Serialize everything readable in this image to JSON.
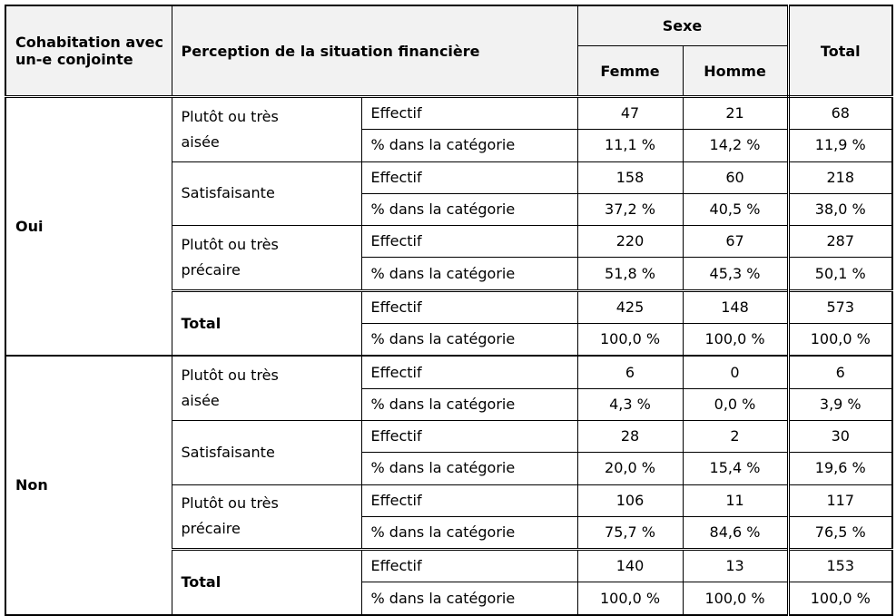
{
  "header": {
    "group": "Cohabitation avec un-e conjointe",
    "perception": "Perception de la situation financière",
    "sexe": "Sexe",
    "femme": "Femme",
    "homme": "Homme",
    "total": "Total"
  },
  "groups": [
    {
      "label": "Oui",
      "categories": [
        {
          "label": "Plutôt ou très aisée",
          "rows": [
            {
              "measure": "Effectif",
              "values": [
                47,
                21,
                68
              ]
            },
            {
              "measure": "% dans la catégorie",
              "values": [
                "11,1 %",
                "14,2 %",
                "11,9 %"
              ]
            }
          ]
        },
        {
          "label": "Satisfaisante",
          "rows": [
            {
              "measure": "Effectif",
              "values": [
                158,
                60,
                218
              ]
            },
            {
              "measure": "% dans la catégorie",
              "values": [
                "37,2 %",
                "40,5 %",
                "38,0 %"
              ]
            }
          ]
        },
        {
          "label": "Plutôt ou très précaire",
          "rows": [
            {
              "measure": "Effectif",
              "values": [
                220,
                67,
                287
              ]
            },
            {
              "measure": "% dans la catégorie",
              "values": [
                "51,8 %",
                "45,3 %",
                "50,1 %"
              ]
            }
          ]
        },
        {
          "label": "Total",
          "rows": [
            {
              "measure": "Effectif",
              "values": [
                425,
                148,
                573
              ]
            },
            {
              "measure": "% dans la catégorie",
              "values": [
                "100,0 %",
                "100,0 %",
                "100,0 %"
              ]
            }
          ]
        }
      ]
    },
    {
      "label": "Non",
      "categories": [
        {
          "label": "Plutôt ou très aisée",
          "rows": [
            {
              "measure": "Effectif",
              "values": [
                6,
                0,
                6
              ]
            },
            {
              "measure": "% dans la catégorie",
              "values": [
                "4,3 %",
                "0,0 %",
                "3,9 %"
              ]
            }
          ]
        },
        {
          "label": "Satisfaisante",
          "rows": [
            {
              "measure": "Effectif",
              "values": [
                28,
                2,
                30
              ]
            },
            {
              "measure": "% dans la catégorie",
              "values": [
                "20,0 %",
                "15,4 %",
                "19,6 %"
              ]
            }
          ]
        },
        {
          "label": "Plutôt ou très précaire",
          "rows": [
            {
              "measure": "Effectif",
              "values": [
                106,
                11,
                117
              ]
            },
            {
              "measure": "% dans la catégorie",
              "values": [
                "75,7 %",
                "84,6 %",
                "76,5 %"
              ]
            }
          ]
        },
        {
          "label": "Total",
          "rows": [
            {
              "measure": "Effectif",
              "values": [
                140,
                13,
                153
              ]
            },
            {
              "measure": "% dans la catégorie",
              "values": [
                "100,0 %",
                "100,0 %",
                "100,0 %"
              ]
            }
          ]
        }
      ]
    }
  ]
}
